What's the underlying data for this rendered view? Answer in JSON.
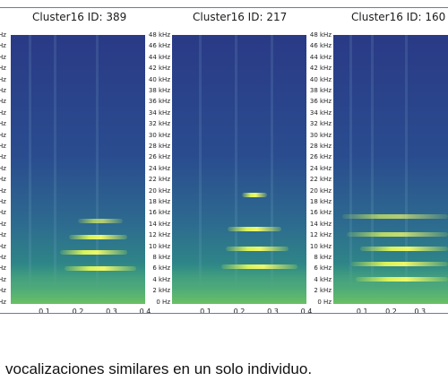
{
  "panels": [
    {
      "title": "Cluster16 ID: 389",
      "x_ticks": [
        "0.1",
        "0.2",
        "0.3",
        "0.4"
      ]
    },
    {
      "title": "Cluster16 ID: 217",
      "x_ticks": [
        "0.1",
        "0.2",
        "0.3",
        "0.4"
      ]
    },
    {
      "title": "Cluster16 ID: 160",
      "x_ticks": [
        "0.1",
        "0.2",
        "0.3"
      ]
    }
  ],
  "freq_labels": [
    "48 kHz",
    "46 kHz",
    "44 kHz",
    "42 kHz",
    "40 kHz",
    "38 kHz",
    "36 kHz",
    "34 kHz",
    "32 kHz",
    "30 kHz",
    "28 kHz",
    "26 kHz",
    "24 kHz",
    "22 kHz",
    "20 kHz",
    "18 kHz",
    "16 kHz",
    "14 kHz",
    "12 kHz",
    "10 kHz",
    "8 kHz",
    "6 kHz",
    "4 kHz",
    "2 kHz",
    "0 Hz"
  ],
  "left_edge_labels": [
    "Hz",
    "Hz",
    "Hz",
    "Hz",
    "Hz",
    "Hz",
    "Hz",
    "Hz",
    "Hz",
    "Hz",
    "Hz",
    "Hz",
    "Hz",
    "Hz",
    "Hz",
    "Hz",
    "Hz",
    "Hz",
    "Hz",
    "Hz",
    "Hz",
    "Hz",
    "Hz",
    "Hz",
    "Hz"
  ],
  "caption": "vocalizaciones similares en un solo individuo."
}
